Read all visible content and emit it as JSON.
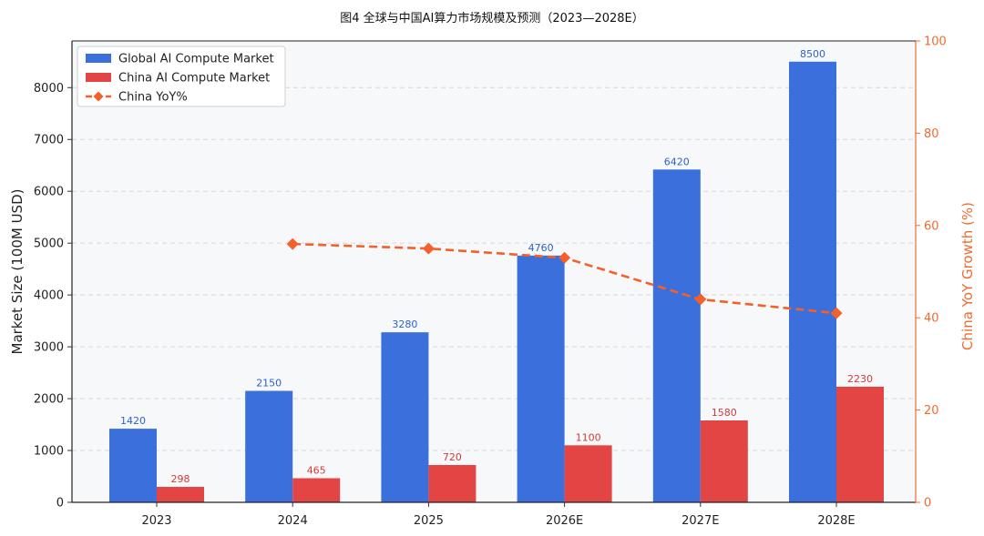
{
  "chart_data": {
    "type": "bar",
    "title": "图4  全球与中国AI算力市场规模及预测（2023—2028E）",
    "categories": [
      "2023",
      "2024",
      "2025",
      "2026E",
      "2027E",
      "2028E"
    ],
    "ylabel": "Market Size (100M USD)",
    "ylabel_right": "China YoY Growth (%)",
    "ylim": [
      0,
      8900
    ],
    "ylim_right": [
      0,
      100
    ],
    "yticks": [
      0,
      1000,
      2000,
      3000,
      4000,
      5000,
      6000,
      7000,
      8000
    ],
    "yticks_right": [
      0,
      20,
      40,
      60,
      80,
      100
    ],
    "grid": "horizontal dashed",
    "legend_position": "top-left",
    "series": [
      {
        "name": "Global AI Compute Market",
        "type": "bar",
        "axis": "left",
        "color": "#3a6fdc",
        "values": [
          1420,
          2150,
          3280,
          4760,
          6420,
          8500
        ],
        "labels": [
          "1420",
          "2150",
          "3280",
          "4760",
          "6420",
          "8500"
        ]
      },
      {
        "name": "China AI Compute Market",
        "type": "bar",
        "axis": "left",
        "color": "#e34545",
        "values": [
          298,
          465,
          720,
          1100,
          1580,
          2230
        ],
        "labels": [
          "298",
          "465",
          "720",
          "1100",
          "1580",
          "2230"
        ]
      },
      {
        "name": "China YoY%",
        "type": "line",
        "axis": "right",
        "color": "#f5602a",
        "style": "dashed",
        "marker": "diamond",
        "values": [
          null,
          56,
          55,
          53,
          44,
          41
        ]
      }
    ]
  }
}
